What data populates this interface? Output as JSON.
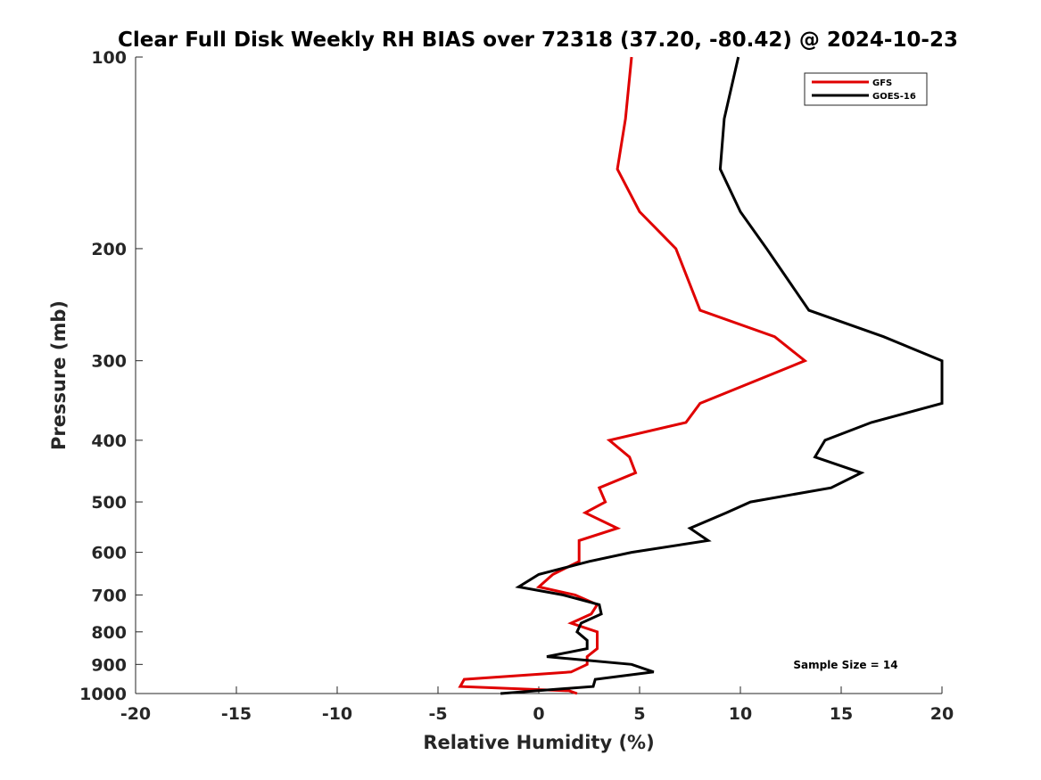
{
  "chart_data": {
    "type": "line",
    "title": "Clear Full Disk Weekly RH BIAS over 72318 (37.20, -80.42) @ 2024-10-23",
    "xlabel": "Relative Humidity (%)",
    "ylabel": "Pressure (mb)",
    "xlim": [
      -20,
      20
    ],
    "ylim": [
      100,
      1000
    ],
    "y_scale": "log",
    "y_reversed": true,
    "x_ticks": [
      "-20",
      "-15",
      "-10",
      "-5",
      "0",
      "5",
      "10",
      "15",
      "20"
    ],
    "y_ticks": [
      "100",
      "200",
      "300",
      "400",
      "500",
      "600",
      "700",
      "800",
      "900",
      "1000"
    ],
    "grid": false,
    "legend_location": "top-right",
    "annotation": "Sample Size = 14",
    "series": [
      {
        "name": "GFS",
        "color": "#e00000",
        "points": [
          [
            4.6,
            100
          ],
          [
            4.3,
            125
          ],
          [
            3.9,
            150
          ],
          [
            5.0,
            175
          ],
          [
            6.8,
            200
          ],
          [
            8.0,
            250
          ],
          [
            11.7,
            275
          ],
          [
            13.2,
            300
          ],
          [
            8.0,
            350
          ],
          [
            7.3,
            375
          ],
          [
            3.5,
            400
          ],
          [
            4.5,
            425
          ],
          [
            4.8,
            450
          ],
          [
            3.0,
            475
          ],
          [
            3.3,
            500
          ],
          [
            2.3,
            520
          ],
          [
            3.9,
            550
          ],
          [
            2.0,
            575
          ],
          [
            2.0,
            620
          ],
          [
            0.7,
            650
          ],
          [
            0.0,
            680
          ],
          [
            1.8,
            700
          ],
          [
            2.9,
            725
          ],
          [
            2.6,
            750
          ],
          [
            1.6,
            775
          ],
          [
            2.9,
            800
          ],
          [
            2.9,
            850
          ],
          [
            2.4,
            875
          ],
          [
            2.4,
            900
          ],
          [
            1.6,
            925
          ],
          [
            -3.7,
            950
          ],
          [
            -3.9,
            975
          ],
          [
            1.5,
            990
          ],
          [
            1.9,
            1000
          ]
        ]
      },
      {
        "name": "GOES-16",
        "color": "#000000",
        "points": [
          [
            9.9,
            100
          ],
          [
            9.2,
            125
          ],
          [
            9.0,
            150
          ],
          [
            10.0,
            175
          ],
          [
            11.3,
            200
          ],
          [
            13.4,
            250
          ],
          [
            17.1,
            275
          ],
          [
            20.0,
            300
          ],
          [
            20.0,
            350
          ],
          [
            16.5,
            375
          ],
          [
            14.2,
            400
          ],
          [
            13.7,
            425
          ],
          [
            16.0,
            450
          ],
          [
            14.5,
            475
          ],
          [
            10.5,
            500
          ],
          [
            9.3,
            520
          ],
          [
            7.5,
            550
          ],
          [
            8.4,
            575
          ],
          [
            4.6,
            600
          ],
          [
            2.5,
            620
          ],
          [
            0.0,
            650
          ],
          [
            -1.0,
            680
          ],
          [
            1.2,
            700
          ],
          [
            3.0,
            725
          ],
          [
            3.1,
            750
          ],
          [
            2.1,
            775
          ],
          [
            1.9,
            800
          ],
          [
            2.4,
            825
          ],
          [
            2.4,
            850
          ],
          [
            0.4,
            875
          ],
          [
            4.6,
            900
          ],
          [
            5.7,
            925
          ],
          [
            2.8,
            950
          ],
          [
            2.7,
            975
          ],
          [
            -1.9,
            1000
          ]
        ]
      }
    ]
  }
}
